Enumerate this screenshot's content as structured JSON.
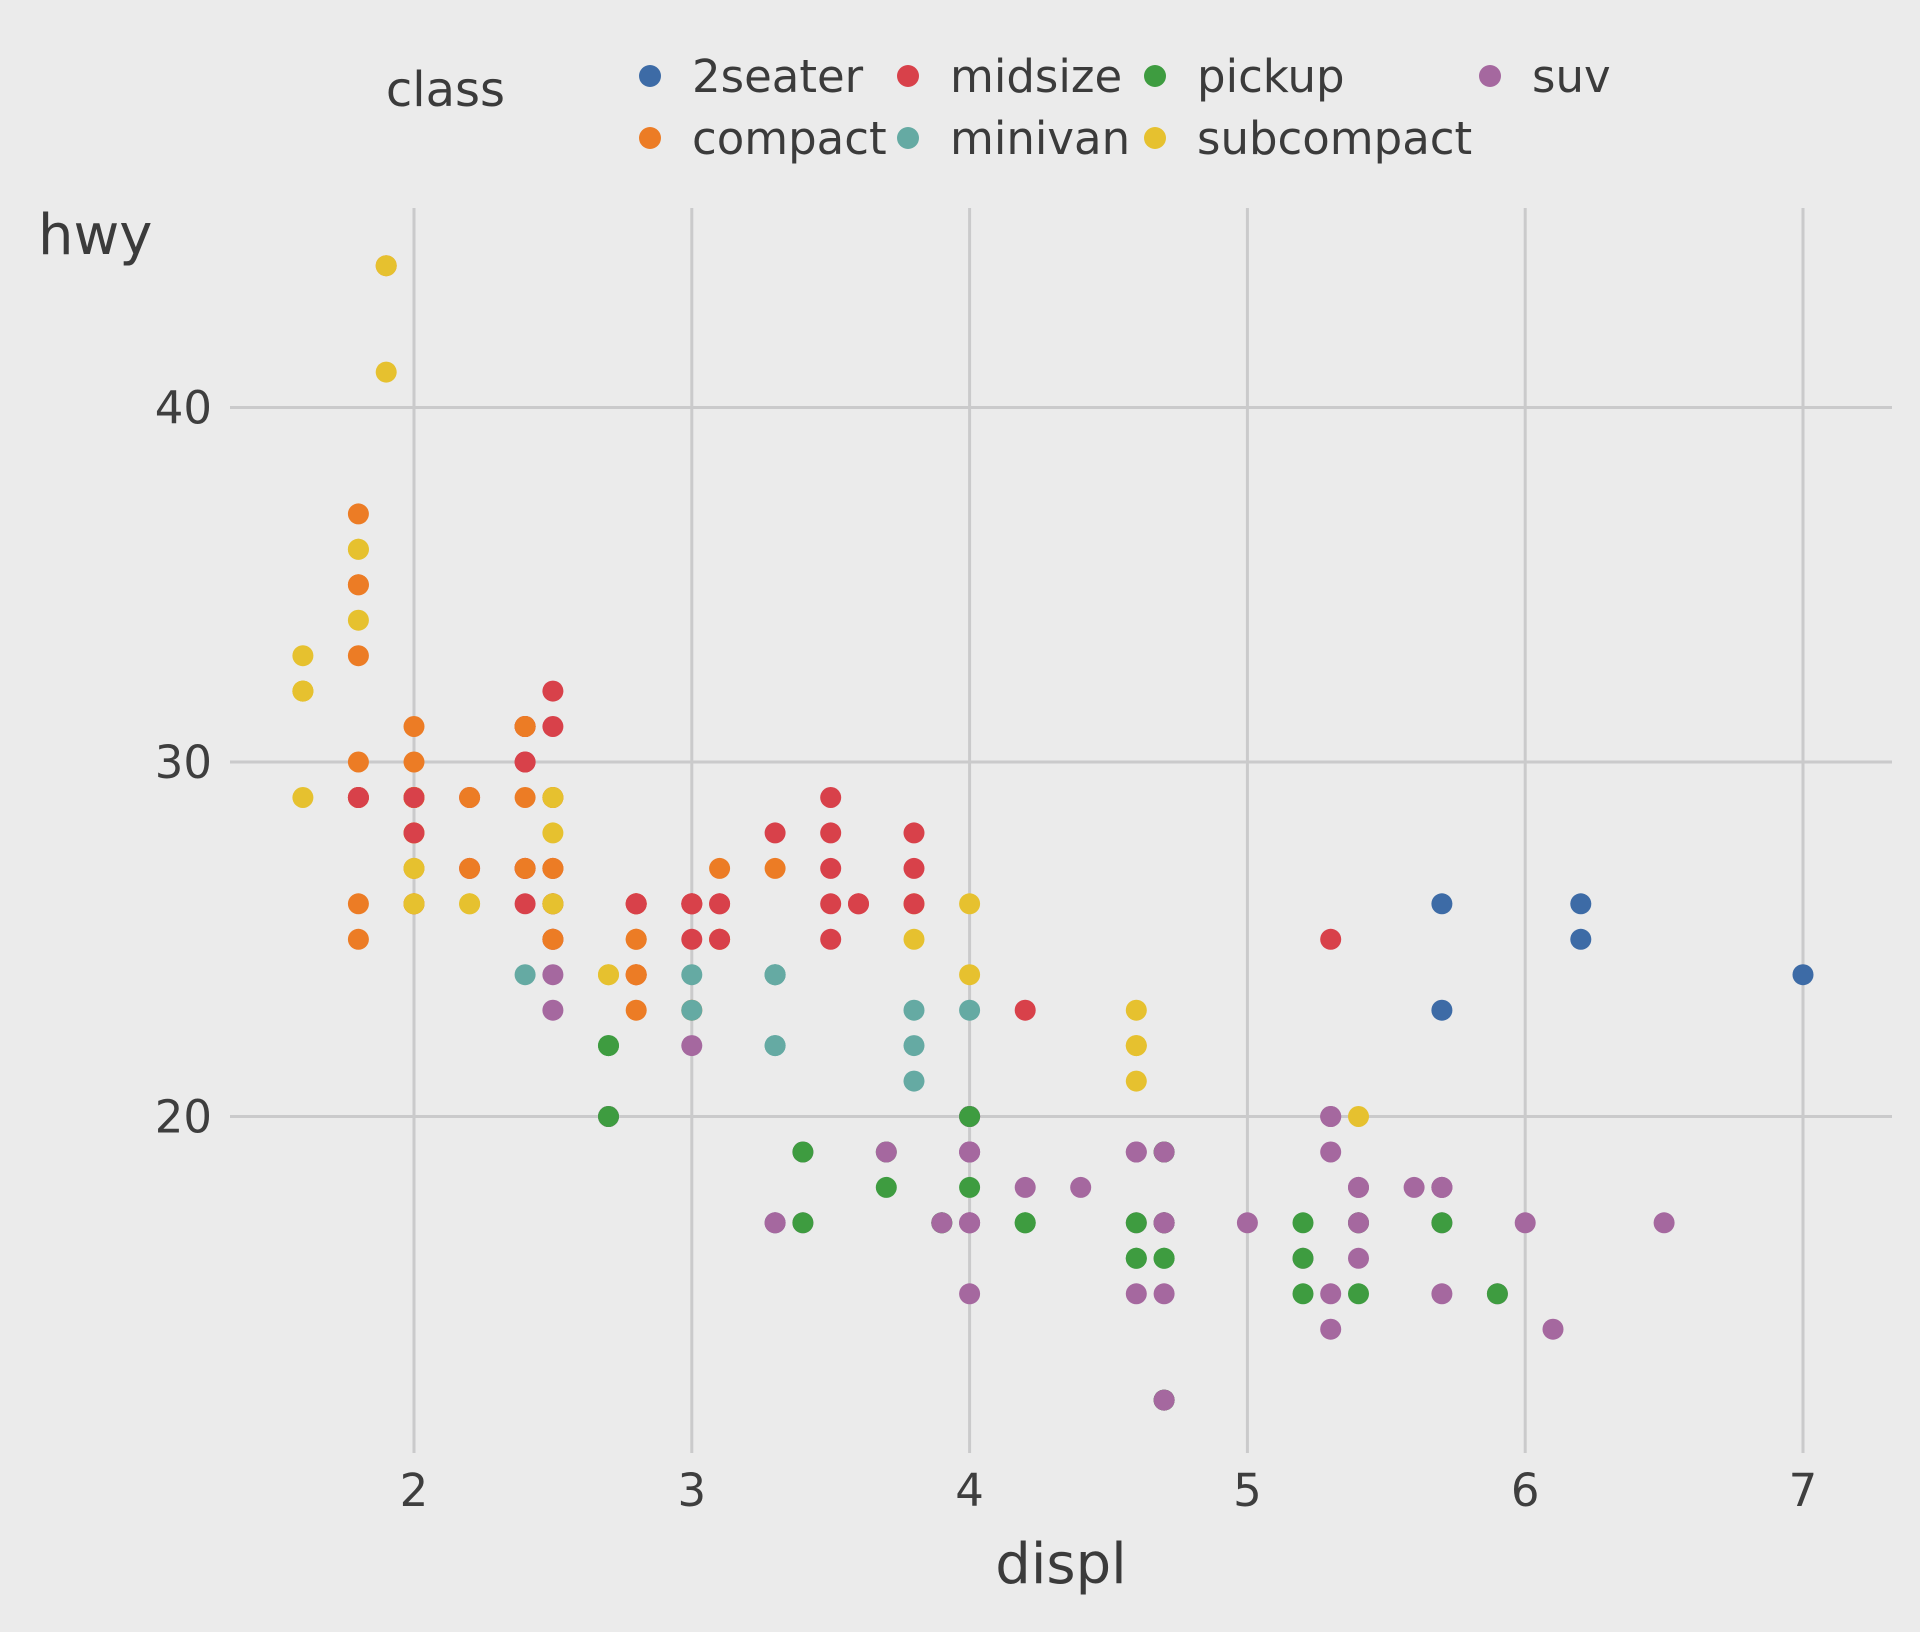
{
  "figure": {
    "background_color": "#EBEBEB",
    "grid_color": "#CACACB",
    "text_color": "#3B3B3B"
  },
  "legend": {
    "title": "class",
    "position": "top",
    "rows": 2
  },
  "axes": {
    "x": {
      "label": "displ",
      "ticks": [
        "2",
        "3",
        "4",
        "5",
        "6",
        "7"
      ]
    },
    "y": {
      "label": "hwy",
      "ticks": [
        "20",
        "30",
        "40"
      ]
    }
  },
  "chart_data": {
    "type": "scatter",
    "title": "",
    "xlabel": "displ",
    "ylabel": "hwy",
    "xlim": [
      1.33,
      7.33
    ],
    "ylim": [
      10.5,
      45.6
    ],
    "x_ticks": [
      2,
      3,
      4,
      5,
      6,
      7
    ],
    "y_ticks": [
      20,
      30,
      40
    ],
    "grid": true,
    "legend_position": "top",
    "classes": [
      "2seater",
      "compact",
      "midsize",
      "minivan",
      "pickup",
      "subcompact",
      "suv"
    ],
    "class_colors": [
      "#3D6BA6",
      "#EC7C25",
      "#D8414A",
      "#65AAA3",
      "#3E9C40",
      "#E6C12F",
      "#A5689F"
    ],
    "points": [
      [
        1.8,
        29,
        1
      ],
      [
        1.8,
        29,
        1
      ],
      [
        2.0,
        31,
        1
      ],
      [
        2.0,
        30,
        1
      ],
      [
        2.8,
        26,
        1
      ],
      [
        2.8,
        26,
        1
      ],
      [
        3.1,
        27,
        1
      ],
      [
        1.8,
        26,
        1
      ],
      [
        1.8,
        25,
        1
      ],
      [
        2.0,
        28,
        1
      ],
      [
        2.0,
        27,
        1
      ],
      [
        2.8,
        25,
        1
      ],
      [
        2.8,
        25,
        1
      ],
      [
        3.1,
        25,
        1
      ],
      [
        3.1,
        25,
        1
      ],
      [
        2.8,
        24,
        2
      ],
      [
        3.1,
        25,
        2
      ],
      [
        4.2,
        23,
        2
      ],
      [
        5.3,
        20,
        6
      ],
      [
        5.3,
        15,
        6
      ],
      [
        5.3,
        20,
        6
      ],
      [
        5.7,
        17,
        6
      ],
      [
        6.0,
        17,
        6
      ],
      [
        5.7,
        26,
        0
      ],
      [
        5.7,
        23,
        0
      ],
      [
        6.2,
        26,
        0
      ],
      [
        6.2,
        25,
        0
      ],
      [
        7.0,
        24,
        0
      ],
      [
        5.3,
        14,
        6
      ],
      [
        5.3,
        19,
        6
      ],
      [
        5.7,
        15,
        6
      ],
      [
        6.5,
        17,
        6
      ],
      [
        2.4,
        27,
        2
      ],
      [
        2.4,
        30,
        2
      ],
      [
        3.1,
        26,
        2
      ],
      [
        3.5,
        29,
        2
      ],
      [
        3.6,
        26,
        2
      ],
      [
        2.4,
        24,
        3
      ],
      [
        3.0,
        24,
        3
      ],
      [
        3.3,
        22,
        3
      ],
      [
        3.3,
        22,
        3
      ],
      [
        3.3,
        24,
        3
      ],
      [
        3.3,
        24,
        3
      ],
      [
        3.3,
        17,
        3
      ],
      [
        3.8,
        22,
        3
      ],
      [
        3.8,
        21,
        3
      ],
      [
        3.8,
        23,
        3
      ],
      [
        4.0,
        23,
        3
      ],
      [
        3.7,
        19,
        4
      ],
      [
        3.7,
        18,
        4
      ],
      [
        3.9,
        17,
        4
      ],
      [
        3.9,
        17,
        4
      ],
      [
        4.7,
        19,
        4
      ],
      [
        4.7,
        19,
        4
      ],
      [
        4.7,
        12,
        4
      ],
      [
        3.9,
        17,
        6
      ],
      [
        4.7,
        17,
        6
      ],
      [
        4.7,
        12,
        6
      ],
      [
        4.7,
        17,
        6
      ],
      [
        5.2,
        16,
        6
      ],
      [
        5.7,
        18,
        6
      ],
      [
        5.9,
        15,
        6
      ],
      [
        4.7,
        16,
        4
      ],
      [
        4.7,
        12,
        4
      ],
      [
        4.7,
        17,
        4
      ],
      [
        4.7,
        17,
        4
      ],
      [
        4.7,
        16,
        4
      ],
      [
        5.2,
        17,
        4
      ],
      [
        5.2,
        15,
        4
      ],
      [
        5.2,
        16,
        4
      ],
      [
        5.7,
        17,
        4
      ],
      [
        5.9,
        15,
        4
      ],
      [
        4.6,
        17,
        6
      ],
      [
        5.4,
        17,
        6
      ],
      [
        5.4,
        18,
        6
      ],
      [
        4.0,
        17,
        6
      ],
      [
        4.0,
        19,
        6
      ],
      [
        4.0,
        17,
        6
      ],
      [
        4.0,
        19,
        6
      ],
      [
        4.6,
        19,
        6
      ],
      [
        4.2,
        17,
        4
      ],
      [
        4.2,
        17,
        4
      ],
      [
        4.6,
        16,
        4
      ],
      [
        4.6,
        16,
        4
      ],
      [
        4.6,
        17,
        4
      ],
      [
        5.4,
        15,
        4
      ],
      [
        5.4,
        17,
        4
      ],
      [
        3.8,
        26,
        5
      ],
      [
        3.8,
        25,
        5
      ],
      [
        4.0,
        26,
        5
      ],
      [
        4.0,
        24,
        5
      ],
      [
        4.6,
        21,
        5
      ],
      [
        4.6,
        22,
        5
      ],
      [
        4.6,
        23,
        5
      ],
      [
        4.6,
        22,
        5
      ],
      [
        5.4,
        20,
        5
      ],
      [
        1.6,
        33,
        5
      ],
      [
        1.6,
        32,
        5
      ],
      [
        1.6,
        32,
        5
      ],
      [
        1.6,
        29,
        5
      ],
      [
        1.6,
        32,
        5
      ],
      [
        1.8,
        34,
        5
      ],
      [
        1.8,
        36,
        5
      ],
      [
        1.8,
        36,
        5
      ],
      [
        2.0,
        29,
        5
      ],
      [
        2.4,
        26,
        2
      ],
      [
        2.4,
        27,
        2
      ],
      [
        2.4,
        30,
        2
      ],
      [
        2.4,
        31,
        2
      ],
      [
        2.5,
        26,
        2
      ],
      [
        2.5,
        26,
        2
      ],
      [
        3.3,
        28,
        2
      ],
      [
        2.0,
        26,
        5
      ],
      [
        2.0,
        29,
        5
      ],
      [
        2.0,
        28,
        5
      ],
      [
        2.0,
        27,
        5
      ],
      [
        2.7,
        24,
        5
      ],
      [
        2.7,
        24,
        5
      ],
      [
        3.0,
        22,
        6
      ],
      [
        3.7,
        19,
        6
      ],
      [
        4.0,
        20,
        6
      ],
      [
        4.7,
        17,
        6
      ],
      [
        4.7,
        12,
        6
      ],
      [
        4.7,
        19,
        6
      ],
      [
        5.7,
        18,
        6
      ],
      [
        6.1,
        14,
        6
      ],
      [
        4.0,
        15,
        6
      ],
      [
        4.2,
        18,
        6
      ],
      [
        4.4,
        18,
        6
      ],
      [
        4.6,
        15,
        6
      ],
      [
        5.4,
        17,
        6
      ],
      [
        5.4,
        16,
        6
      ],
      [
        5.4,
        18,
        6
      ],
      [
        4.0,
        17,
        6
      ],
      [
        4.0,
        19,
        6
      ],
      [
        4.6,
        19,
        6
      ],
      [
        5.0,
        17,
        6
      ],
      [
        2.4,
        29,
        1
      ],
      [
        2.4,
        27,
        1
      ],
      [
        2.5,
        31,
        2
      ],
      [
        2.5,
        32,
        2
      ],
      [
        3.5,
        27,
        2
      ],
      [
        3.5,
        26,
        2
      ],
      [
        3.0,
        26,
        2
      ],
      [
        3.0,
        25,
        2
      ],
      [
        3.5,
        25,
        2
      ],
      [
        3.3,
        17,
        6
      ],
      [
        3.3,
        17,
        6
      ],
      [
        4.0,
        20,
        6
      ],
      [
        5.6,
        18,
        6
      ],
      [
        3.1,
        26,
        2
      ],
      [
        3.8,
        26,
        2
      ],
      [
        3.8,
        27,
        2
      ],
      [
        3.8,
        28,
        2
      ],
      [
        5.3,
        25,
        2
      ],
      [
        2.5,
        25,
        6
      ],
      [
        2.5,
        24,
        6
      ],
      [
        2.5,
        27,
        6
      ],
      [
        2.5,
        25,
        6
      ],
      [
        2.5,
        26,
        6
      ],
      [
        2.5,
        23,
        6
      ],
      [
        2.2,
        26,
        5
      ],
      [
        2.2,
        26,
        5
      ],
      [
        2.5,
        26,
        5
      ],
      [
        2.5,
        26,
        5
      ],
      [
        2.5,
        25,
        1
      ],
      [
        2.5,
        27,
        1
      ],
      [
        2.5,
        25,
        1
      ],
      [
        2.5,
        27,
        1
      ],
      [
        2.7,
        20,
        6
      ],
      [
        2.7,
        20,
        6
      ],
      [
        3.4,
        19,
        6
      ],
      [
        3.4,
        17,
        6
      ],
      [
        4.0,
        20,
        6
      ],
      [
        4.7,
        17,
        6
      ],
      [
        2.2,
        29,
        2
      ],
      [
        2.2,
        27,
        2
      ],
      [
        2.4,
        31,
        2
      ],
      [
        2.4,
        31,
        2
      ],
      [
        3.0,
        26,
        2
      ],
      [
        3.0,
        26,
        2
      ],
      [
        3.5,
        28,
        2
      ],
      [
        2.2,
        27,
        1
      ],
      [
        2.2,
        29,
        1
      ],
      [
        2.4,
        31,
        1
      ],
      [
        2.4,
        31,
        1
      ],
      [
        3.0,
        23,
        1
      ],
      [
        3.3,
        27,
        1
      ],
      [
        1.8,
        30,
        1
      ],
      [
        1.8,
        33,
        1
      ],
      [
        1.8,
        35,
        1
      ],
      [
        1.8,
        37,
        1
      ],
      [
        1.8,
        35,
        1
      ],
      [
        4.7,
        15,
        6
      ],
      [
        5.7,
        18,
        6
      ],
      [
        3.0,
        23,
        3
      ],
      [
        3.3,
        24,
        3
      ],
      [
        2.7,
        22,
        4
      ],
      [
        2.7,
        20,
        4
      ],
      [
        2.7,
        22,
        4
      ],
      [
        3.4,
        17,
        4
      ],
      [
        3.4,
        19,
        4
      ],
      [
        4.0,
        18,
        4
      ],
      [
        4.0,
        20,
        4
      ],
      [
        2.0,
        29,
        1
      ],
      [
        2.0,
        26,
        1
      ],
      [
        2.0,
        29,
        1
      ],
      [
        2.0,
        29,
        1
      ],
      [
        2.8,
        24,
        1
      ],
      [
        1.9,
        44,
        1
      ],
      [
        2.0,
        29,
        1
      ],
      [
        2.0,
        26,
        1
      ],
      [
        2.0,
        29,
        1
      ],
      [
        2.0,
        29,
        1
      ],
      [
        2.5,
        29,
        1
      ],
      [
        2.5,
        29,
        1
      ],
      [
        2.8,
        23,
        1
      ],
      [
        2.8,
        24,
        1
      ],
      [
        1.9,
        44,
        5
      ],
      [
        1.9,
        41,
        5
      ],
      [
        2.0,
        29,
        5
      ],
      [
        2.0,
        26,
        5
      ],
      [
        2.5,
        28,
        5
      ],
      [
        2.5,
        29,
        5
      ],
      [
        1.8,
        29,
        2
      ],
      [
        1.8,
        29,
        2
      ],
      [
        2.0,
        28,
        2
      ],
      [
        2.0,
        29,
        2
      ],
      [
        2.8,
        26,
        2
      ],
      [
        2.8,
        26,
        2
      ],
      [
        3.6,
        26,
        2
      ]
    ]
  }
}
